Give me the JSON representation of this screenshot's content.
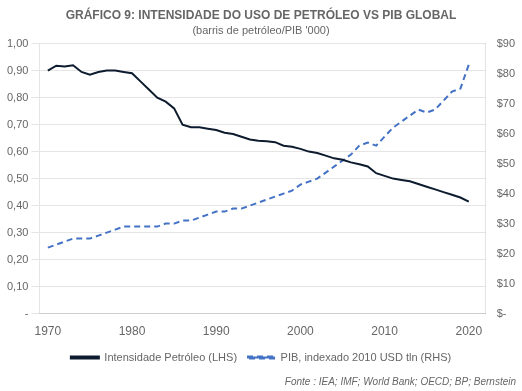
{
  "chart_data": {
    "type": "line",
    "title": "GRÁFICO 9: INTENSIDADE DO USO DE PETRÓLEO VS PIB GLOBAL",
    "subtitle": "(barris de petróleo/PIB '000)",
    "annotations": [
      "Fonte : IEA; IMF; World Bank; OECD; BP; Bernstein"
    ],
    "x": [
      1970,
      1971,
      1972,
      1973,
      1974,
      1975,
      1976,
      1977,
      1978,
      1979,
      1980,
      1981,
      1982,
      1983,
      1984,
      1985,
      1986,
      1987,
      1988,
      1989,
      1990,
      1991,
      1992,
      1993,
      1994,
      1995,
      1996,
      1997,
      1998,
      1999,
      2000,
      2001,
      2002,
      2003,
      2004,
      2005,
      2006,
      2007,
      2008,
      2009,
      2010,
      2011,
      2012,
      2013,
      2014,
      2015,
      2016,
      2017,
      2018,
      2019,
      2020
    ],
    "xlim": [
      1969,
      2022
    ],
    "xticks": [
      1970,
      1980,
      1990,
      2000,
      2010,
      2020
    ],
    "ylim": [
      0,
      1.0
    ],
    "yticks": [
      {
        "value": 0.0,
        "label": "-"
      },
      {
        "value": 0.1,
        "label": "0,10"
      },
      {
        "value": 0.2,
        "label": "0,20"
      },
      {
        "value": 0.3,
        "label": "0,30"
      },
      {
        "value": 0.4,
        "label": "0,40"
      },
      {
        "value": 0.5,
        "label": "0,50"
      },
      {
        "value": 0.6,
        "label": "0,60"
      },
      {
        "value": 0.7,
        "label": "0,70"
      },
      {
        "value": 0.8,
        "label": "0,80"
      },
      {
        "value": 0.9,
        "label": "0,90"
      },
      {
        "value": 1.0,
        "label": "1,00"
      }
    ],
    "y2lim": [
      0,
      90
    ],
    "y2ticks": [
      {
        "value": 0,
        "label": "$-"
      },
      {
        "value": 10,
        "label": "$10"
      },
      {
        "value": 20,
        "label": "$20"
      },
      {
        "value": 30,
        "label": "$30"
      },
      {
        "value": 40,
        "label": "$40"
      },
      {
        "value": 50,
        "label": "$50"
      },
      {
        "value": 60,
        "label": "$60"
      },
      {
        "value": 70,
        "label": "$70"
      },
      {
        "value": 80,
        "label": "$80"
      },
      {
        "value": 90,
        "label": "$90"
      }
    ],
    "grid": true,
    "legend": "bottom",
    "series": [
      {
        "name": "Intensidade Petróleo (LHS)",
        "color": "#0d1b2e",
        "line_style": "solid",
        "values": [
          0.9,
          0.918,
          0.915,
          0.92,
          0.895,
          0.885,
          0.895,
          0.9,
          0.9,
          0.895,
          0.89,
          0.86,
          0.83,
          0.8,
          0.785,
          0.76,
          0.7,
          0.69,
          0.69,
          0.685,
          0.68,
          0.67,
          0.665,
          0.655,
          0.645,
          0.64,
          0.638,
          0.635,
          0.622,
          0.618,
          0.61,
          0.6,
          0.595,
          0.585,
          0.575,
          0.57,
          0.56,
          0.553,
          0.545,
          0.52,
          0.51,
          0.5,
          0.495,
          0.49,
          0.48,
          0.47,
          0.46,
          0.45,
          0.44,
          0.43,
          0.415
        ]
      },
      {
        "name": "PIB, indexado 2010 USD tln (RHS)",
        "color": "#4472c4",
        "line_style": "dashed",
        "axis": "y2",
        "values": [
          22,
          23,
          24,
          25,
          25,
          25,
          26,
          27,
          28,
          29,
          29,
          29,
          29,
          29,
          30,
          30,
          31,
          31,
          32,
          33,
          34,
          34,
          35,
          35,
          36,
          37,
          38,
          39,
          40,
          41,
          43,
          44,
          45,
          47,
          49,
          51,
          53,
          56,
          57,
          56,
          59,
          62,
          64,
          66,
          68,
          67,
          68,
          71,
          74,
          75,
          83
        ]
      }
    ]
  }
}
